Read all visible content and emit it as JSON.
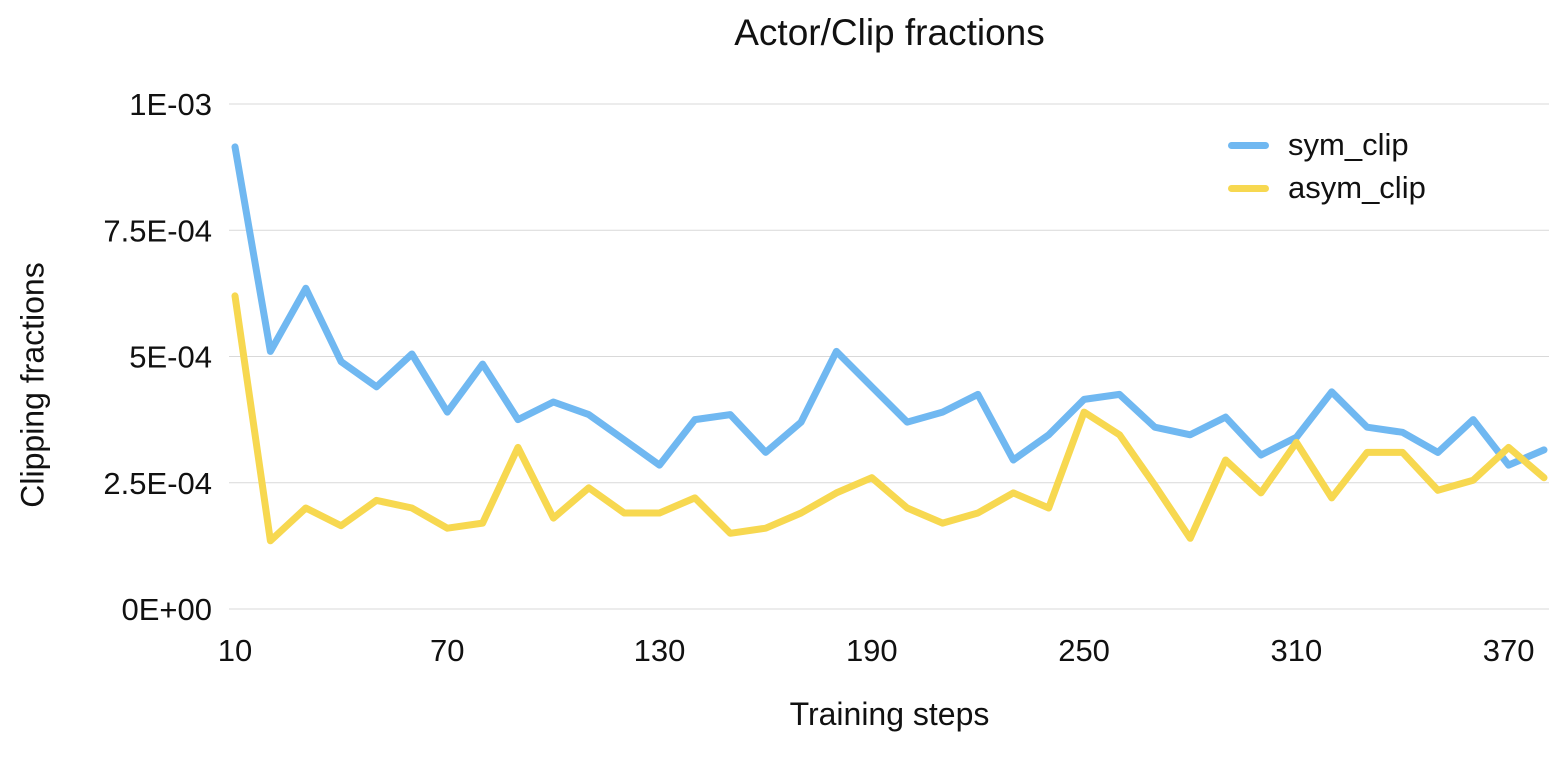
{
  "chart_data": {
    "type": "line",
    "title": "Actor/Clip fractions",
    "xlabel": "Training steps",
    "ylabel": "Clipping fractions",
    "x": [
      10,
      20,
      30,
      40,
      50,
      60,
      70,
      80,
      90,
      100,
      110,
      120,
      130,
      140,
      150,
      160,
      170,
      180,
      190,
      200,
      210,
      220,
      230,
      240,
      250,
      260,
      270,
      280,
      290,
      300,
      310,
      320,
      330,
      340,
      350,
      360,
      370,
      380
    ],
    "series": [
      {
        "name": "sym_clip",
        "color": "#70B8F1",
        "values": [
          0.000915,
          0.00051,
          0.000635,
          0.00049,
          0.00044,
          0.000505,
          0.00039,
          0.000485,
          0.000375,
          0.00041,
          0.000385,
          0.000335,
          0.000285,
          0.000375,
          0.000385,
          0.00031,
          0.00037,
          0.00051,
          0.00044,
          0.00037,
          0.00039,
          0.000425,
          0.000295,
          0.000345,
          0.000415,
          0.000425,
          0.00036,
          0.000345,
          0.00038,
          0.000305,
          0.00034,
          0.00043,
          0.00036,
          0.00035,
          0.00031,
          0.000375,
          0.000285,
          0.000315
        ]
      },
      {
        "name": "asym_clip",
        "color": "#F7D850",
        "values": [
          0.00062,
          0.000135,
          0.0002,
          0.000165,
          0.000215,
          0.0002,
          0.00016,
          0.00017,
          0.00032,
          0.00018,
          0.00024,
          0.00019,
          0.00019,
          0.00022,
          0.00015,
          0.00016,
          0.00019,
          0.00023,
          0.00026,
          0.0002,
          0.00017,
          0.00019,
          0.00023,
          0.0002,
          0.00039,
          0.000345,
          0.000245,
          0.00014,
          0.000295,
          0.00023,
          0.00033,
          0.00022,
          0.00031,
          0.00031,
          0.000235,
          0.000255,
          0.00032,
          0.00026
        ]
      }
    ],
    "x_ticks": [
      {
        "value": 10,
        "label": "10"
      },
      {
        "value": 70,
        "label": "70"
      },
      {
        "value": 130,
        "label": "130"
      },
      {
        "value": 190,
        "label": "190"
      },
      {
        "value": 250,
        "label": "250"
      },
      {
        "value": 310,
        "label": "310"
      },
      {
        "value": 370,
        "label": "370"
      }
    ],
    "y_ticks": [
      {
        "value": 0,
        "label": "0E+00"
      },
      {
        "value": 0.00025,
        "label": "2.5E-04"
      },
      {
        "value": 0.0005,
        "label": "5E-04"
      },
      {
        "value": 0.00075,
        "label": "7.5E-04"
      },
      {
        "value": 0.001,
        "label": "1E-03"
      }
    ],
    "xlim": [
      10,
      380
    ],
    "ylim": [
      0,
      0.001
    ],
    "grid": true,
    "gridline_color": "#d9d9d9",
    "legend_position": "top-right",
    "line_width": 7
  }
}
